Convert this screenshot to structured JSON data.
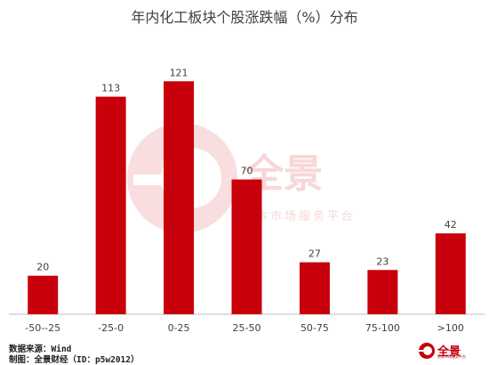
{
  "chart_data": {
    "type": "bar",
    "title": "年内化工板块个股涨跌幅（%）分布",
    "categories": [
      "-50--25",
      "-25-0",
      "0-25",
      "25-50",
      "50-75",
      "75-100",
      ">100"
    ],
    "values": [
      20,
      113,
      121,
      70,
      27,
      23,
      42
    ],
    "xlabel": "",
    "ylabel": "",
    "ylim": [
      0,
      135
    ],
    "grid": false,
    "bar_color": "#c8000b"
  },
  "watermark": {
    "brand": "全景",
    "tagline": "资本市场服务平台"
  },
  "footer": {
    "source": "数据来源：Wind",
    "maker": "制图：全景财经（ID：p5w2012）",
    "logo_text": "全景",
    "logo_sub": "资本市场服务平台"
  },
  "colors": {
    "bar": "#c8000b",
    "watermark": "#f2c6c6",
    "axis": "#bfbfbf"
  }
}
